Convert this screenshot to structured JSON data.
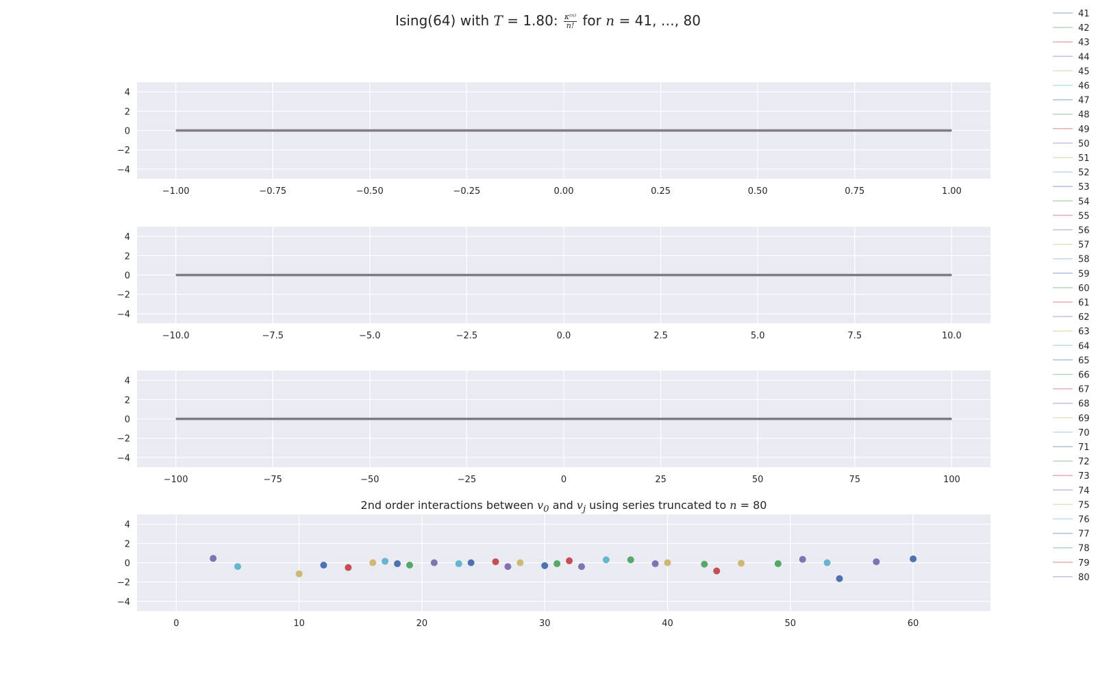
{
  "title": {
    "prefix": "Ising(64) with ",
    "T_var": "T",
    "T_eq": " = 1.80: ",
    "frac_num": "κ⁽ⁿ⁾",
    "frac_den": "n!",
    "for_text": " for ",
    "n_var": "n",
    "range_text": " = 41, …, 80"
  },
  "bottom_title": {
    "prefix": "2nd order interactions between ",
    "v0": "v",
    "v0_sub": "0",
    "and_text": " and ",
    "vj": "v",
    "vj_sub": "j",
    "suffix": " using series truncated to ",
    "n_var": "n",
    "n_eq": " = 80"
  },
  "colors": {
    "axes_bg": "#eaeaf2",
    "grid": "#ffffff",
    "line": "#7f7a86",
    "palette": [
      "#4c72b0",
      "#55a868",
      "#c44e52",
      "#8172b2",
      "#ccb974",
      "#64b5cd"
    ]
  },
  "chart_data": [
    {
      "type": "line",
      "xlim": [
        -1.1,
        1.1
      ],
      "ylim": [
        -5,
        5
      ],
      "xticks": [
        -1.0,
        -0.75,
        -0.5,
        -0.25,
        0.0,
        0.25,
        0.5,
        0.75,
        1.0
      ],
      "xtick_labels": [
        "−1.00",
        "−0.75",
        "−0.50",
        "−0.25",
        "0.00",
        "0.25",
        "0.50",
        "0.75",
        "1.00"
      ],
      "yticks": [
        -4,
        -2,
        0,
        2,
        4
      ],
      "ytick_labels": [
        "−4",
        "−2",
        "0",
        "2",
        "4"
      ],
      "series": [
        {
          "x": [
            -1.0,
            1.0
          ],
          "y": [
            0,
            0
          ]
        }
      ]
    },
    {
      "type": "line",
      "xlim": [
        -11,
        11
      ],
      "ylim": [
        -5,
        5
      ],
      "xticks": [
        -10,
        -7.5,
        -5,
        -2.5,
        0,
        2.5,
        5,
        7.5,
        10
      ],
      "xtick_labels": [
        "−10.0",
        "−7.5",
        "−5.0",
        "−2.5",
        "0.0",
        "2.5",
        "5.0",
        "7.5",
        "10.0"
      ],
      "yticks": [
        -4,
        -2,
        0,
        2,
        4
      ],
      "ytick_labels": [
        "−4",
        "−2",
        "0",
        "2",
        "4"
      ],
      "series": [
        {
          "x": [
            -10,
            10
          ],
          "y": [
            0,
            0
          ]
        }
      ]
    },
    {
      "type": "line",
      "xlim": [
        -110,
        110
      ],
      "ylim": [
        -5,
        5
      ],
      "xticks": [
        -100,
        -75,
        -50,
        -25,
        0,
        25,
        50,
        75,
        100
      ],
      "xtick_labels": [
        "−100",
        "−75",
        "−50",
        "−25",
        "0",
        "25",
        "50",
        "75",
        "100"
      ],
      "yticks": [
        -4,
        -2,
        0,
        2,
        4
      ],
      "ytick_labels": [
        "−4",
        "−2",
        "0",
        "2",
        "4"
      ],
      "series": [
        {
          "x": [
            -100,
            100
          ],
          "y": [
            0,
            0
          ]
        }
      ]
    },
    {
      "type": "scatter",
      "xlim": [
        -3.2,
        66.3
      ],
      "ylim": [
        -5,
        5
      ],
      "xticks": [
        0,
        10,
        20,
        30,
        40,
        50,
        60
      ],
      "xtick_labels": [
        "0",
        "10",
        "20",
        "30",
        "40",
        "50",
        "60"
      ],
      "yticks": [
        -4,
        -2,
        0,
        2,
        4
      ],
      "ytick_labels": [
        "−4",
        "−2",
        "0",
        "2",
        "4"
      ],
      "points": [
        {
          "x": 3,
          "y": 0.45,
          "color": "#8172b2"
        },
        {
          "x": 5,
          "y": -0.4,
          "color": "#64b5cd"
        },
        {
          "x": 10,
          "y": -1.15,
          "color": "#ccb974"
        },
        {
          "x": 12,
          "y": -0.25,
          "color": "#4c72b0"
        },
        {
          "x": 14,
          "y": -0.5,
          "color": "#c44e52"
        },
        {
          "x": 16,
          "y": 0.0,
          "color": "#ccb974"
        },
        {
          "x": 17,
          "y": 0.15,
          "color": "#64b5cd"
        },
        {
          "x": 18,
          "y": -0.1,
          "color": "#4c72b0"
        },
        {
          "x": 19,
          "y": -0.25,
          "color": "#55a868"
        },
        {
          "x": 21,
          "y": 0.0,
          "color": "#8172b2"
        },
        {
          "x": 23,
          "y": -0.1,
          "color": "#64b5cd"
        },
        {
          "x": 24,
          "y": 0.0,
          "color": "#4c72b0"
        },
        {
          "x": 26,
          "y": 0.1,
          "color": "#c44e52"
        },
        {
          "x": 27,
          "y": -0.4,
          "color": "#8172b2"
        },
        {
          "x": 28,
          "y": 0.0,
          "color": "#ccb974"
        },
        {
          "x": 30,
          "y": -0.3,
          "color": "#4c72b0"
        },
        {
          "x": 31,
          "y": -0.1,
          "color": "#55a868"
        },
        {
          "x": 32,
          "y": 0.2,
          "color": "#c44e52"
        },
        {
          "x": 33,
          "y": -0.4,
          "color": "#8172b2"
        },
        {
          "x": 35,
          "y": 0.3,
          "color": "#64b5cd"
        },
        {
          "x": 37,
          "y": 0.3,
          "color": "#55a868"
        },
        {
          "x": 39,
          "y": -0.1,
          "color": "#8172b2"
        },
        {
          "x": 40,
          "y": 0.0,
          "color": "#ccb974"
        },
        {
          "x": 43,
          "y": -0.15,
          "color": "#55a868"
        },
        {
          "x": 44,
          "y": -0.85,
          "color": "#c44e52"
        },
        {
          "x": 46,
          "y": -0.05,
          "color": "#ccb974"
        },
        {
          "x": 49,
          "y": -0.1,
          "color": "#55a868"
        },
        {
          "x": 51,
          "y": 0.35,
          "color": "#8172b2"
        },
        {
          "x": 53,
          "y": 0.0,
          "color": "#64b5cd"
        },
        {
          "x": 54,
          "y": -1.65,
          "color": "#4c72b0"
        },
        {
          "x": 57,
          "y": 0.1,
          "color": "#8172b2"
        },
        {
          "x": 60,
          "y": 0.4,
          "color": "#4c72b0"
        }
      ]
    }
  ],
  "legend": {
    "placement": "top-right",
    "entries": [
      {
        "label": "41",
        "color": "#4c72b0"
      },
      {
        "label": "42",
        "color": "#55a868"
      },
      {
        "label": "43",
        "color": "#c44e52"
      },
      {
        "label": "44",
        "color": "#8172b2"
      },
      {
        "label": "45",
        "color": "#ccb974"
      },
      {
        "label": "46",
        "color": "#64b5cd"
      },
      {
        "label": "47",
        "color": "#4c72b0"
      },
      {
        "label": "48",
        "color": "#55a868"
      },
      {
        "label": "49",
        "color": "#c44e52"
      },
      {
        "label": "50",
        "color": "#8172b2"
      },
      {
        "label": "51",
        "color": "#ccb974"
      },
      {
        "label": "52",
        "color": "#64b5cd"
      },
      {
        "label": "53",
        "color": "#4c72b0"
      },
      {
        "label": "54",
        "color": "#55a868"
      },
      {
        "label": "55",
        "color": "#c44e52"
      },
      {
        "label": "56",
        "color": "#8172b2"
      },
      {
        "label": "57",
        "color": "#ccb974"
      },
      {
        "label": "58",
        "color": "#64b5cd"
      },
      {
        "label": "59",
        "color": "#4c72b0"
      },
      {
        "label": "60",
        "color": "#55a868"
      },
      {
        "label": "61",
        "color": "#c44e52"
      },
      {
        "label": "62",
        "color": "#8172b2"
      },
      {
        "label": "63",
        "color": "#ccb974"
      },
      {
        "label": "64",
        "color": "#64b5cd"
      },
      {
        "label": "65",
        "color": "#4c72b0"
      },
      {
        "label": "66",
        "color": "#55a868"
      },
      {
        "label": "67",
        "color": "#c44e52"
      },
      {
        "label": "68",
        "color": "#8172b2"
      },
      {
        "label": "69",
        "color": "#ccb974"
      },
      {
        "label": "70",
        "color": "#64b5cd"
      },
      {
        "label": "71",
        "color": "#4c72b0"
      },
      {
        "label": "72",
        "color": "#55a868"
      },
      {
        "label": "73",
        "color": "#c44e52"
      },
      {
        "label": "74",
        "color": "#8172b2"
      },
      {
        "label": "75",
        "color": "#ccb974"
      },
      {
        "label": "76",
        "color": "#64b5cd"
      },
      {
        "label": "77",
        "color": "#4c72b0"
      },
      {
        "label": "78",
        "color": "#55a868"
      },
      {
        "label": "79",
        "color": "#c44e52"
      },
      {
        "label": "80",
        "color": "#8172b2"
      }
    ]
  }
}
